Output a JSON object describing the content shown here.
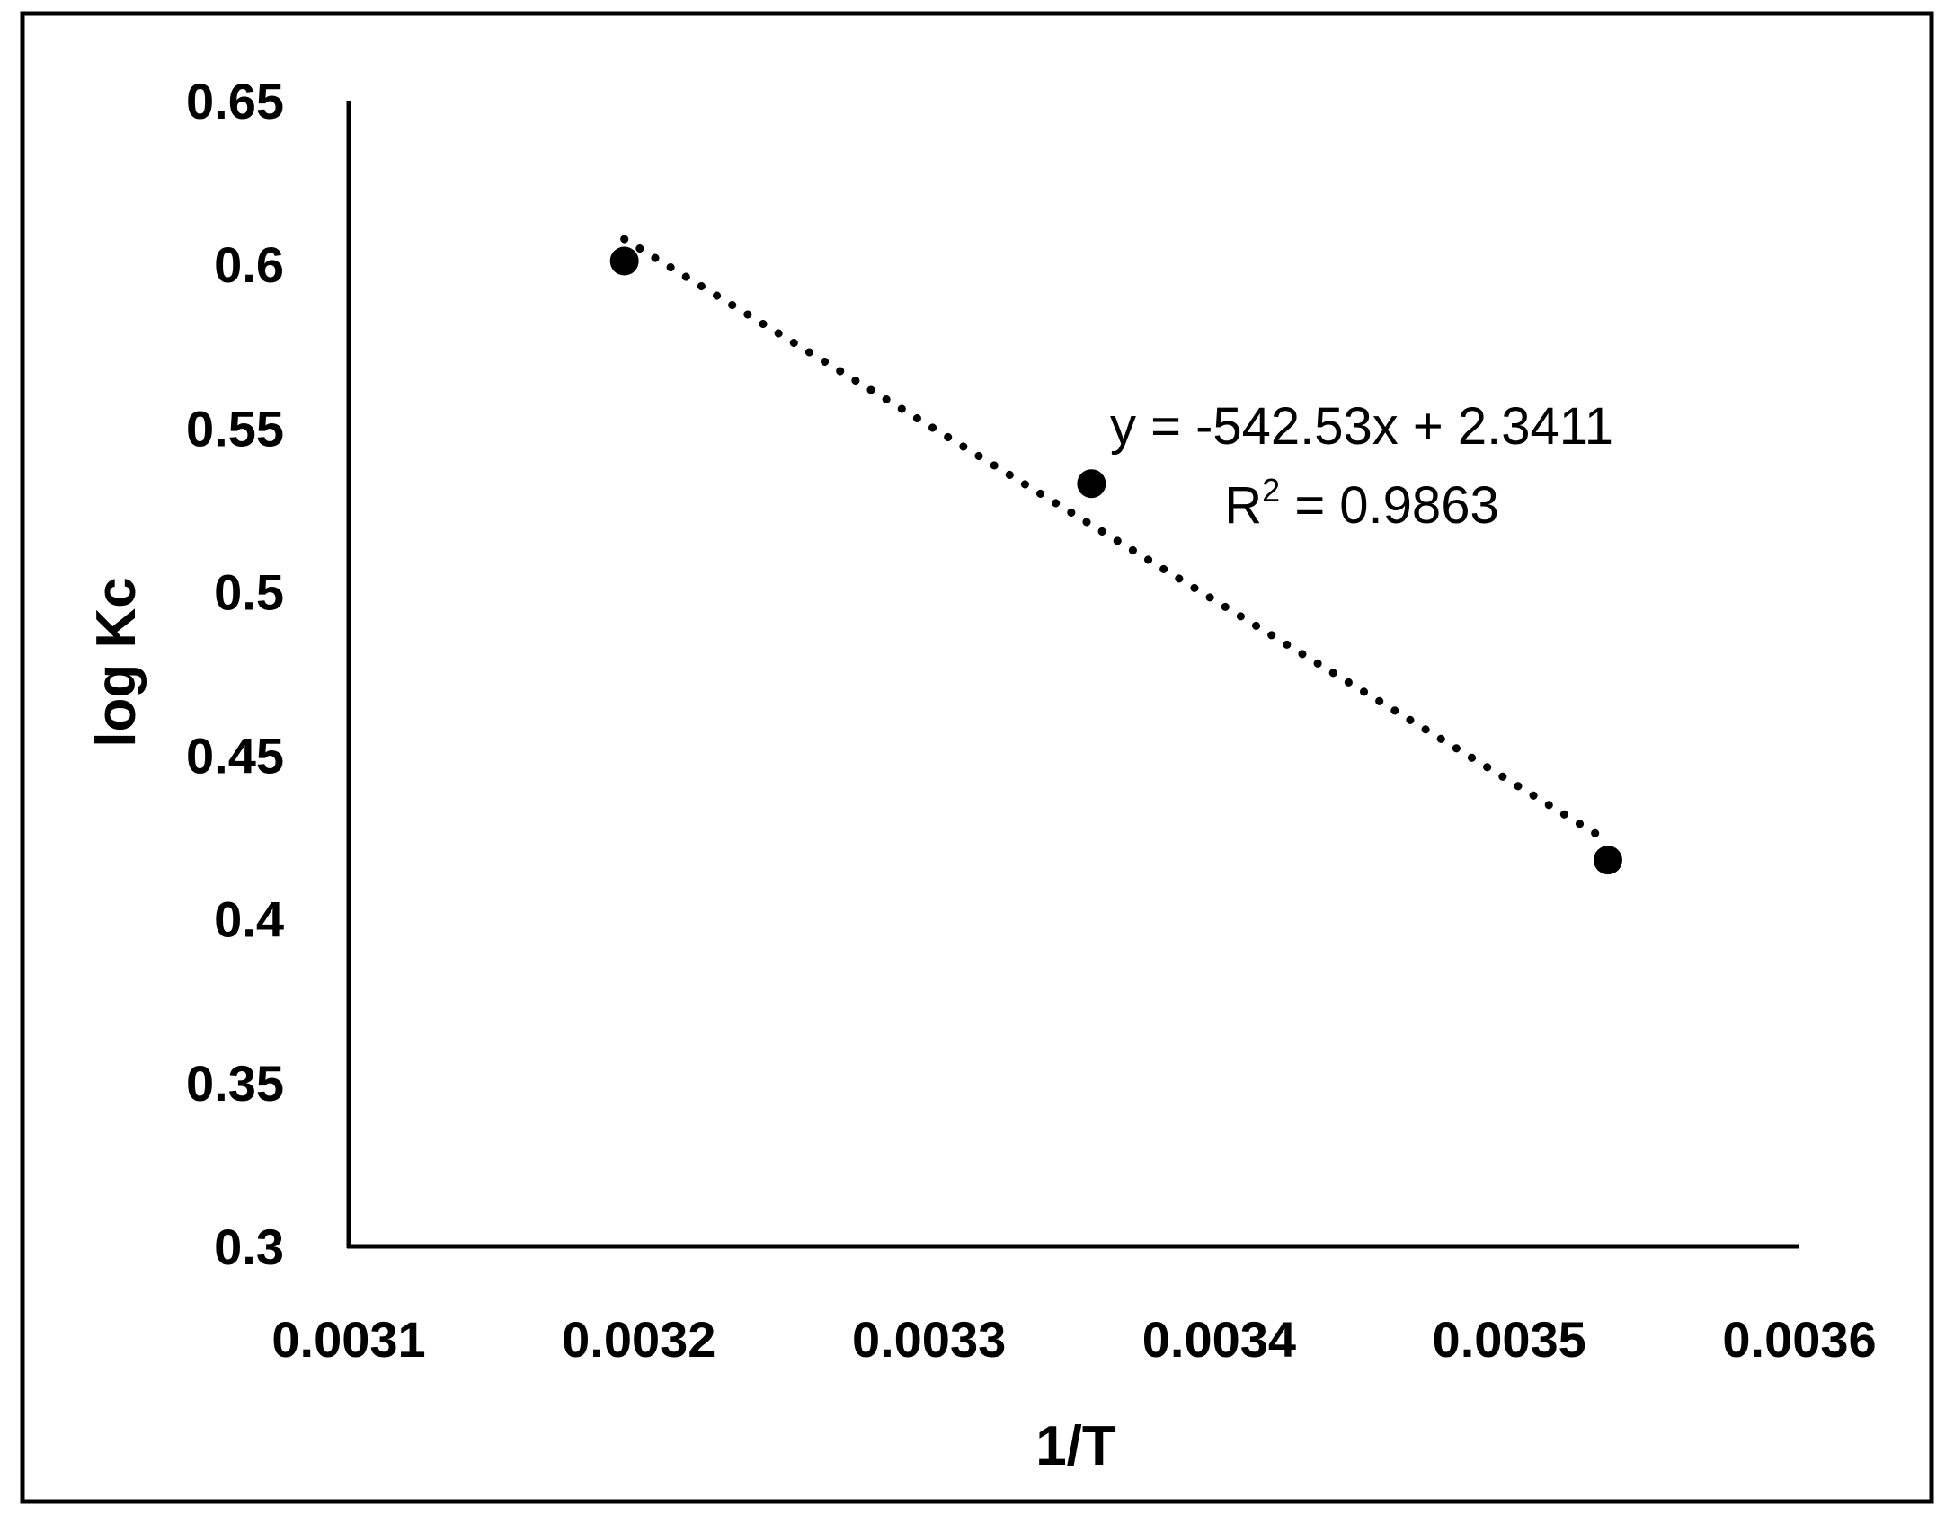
{
  "chart_data": {
    "type": "scatter",
    "xlabel": "1/T",
    "ylabel": "log Kc",
    "xlim": [
      0.0031,
      0.0036
    ],
    "ylim": [
      0.3,
      0.65
    ],
    "x_ticks": [
      "0.0031",
      "0.0032",
      "0.0033",
      "0.0034",
      "0.0035",
      "0.0036"
    ],
    "y_ticks": [
      "0.3",
      "0.35",
      "0.4",
      "0.45",
      "0.5",
      "0.55",
      "0.6",
      "0.65"
    ],
    "grid": false,
    "legend": "none",
    "series": [
      {
        "points": [
          {
            "x": 0.003195,
            "y": 0.601
          },
          {
            "x": 0.003356,
            "y": 0.533
          },
          {
            "x": 0.003534,
            "y": 0.418
          }
        ]
      }
    ],
    "trendline": {
      "type": "linear",
      "style": "dotted",
      "slope": -542.53,
      "intercept": 2.3411,
      "x_range": [
        0.003195,
        0.003534
      ]
    },
    "annotations": {
      "equation": "y = -542.53x + 2.3411",
      "r_squared_prefix": "R",
      "r_squared_exponent": "2",
      "r_squared_suffix": " = 0.9863"
    },
    "colors": {
      "marker": "#000000",
      "axis": "#000000",
      "frame": "#000000"
    }
  }
}
